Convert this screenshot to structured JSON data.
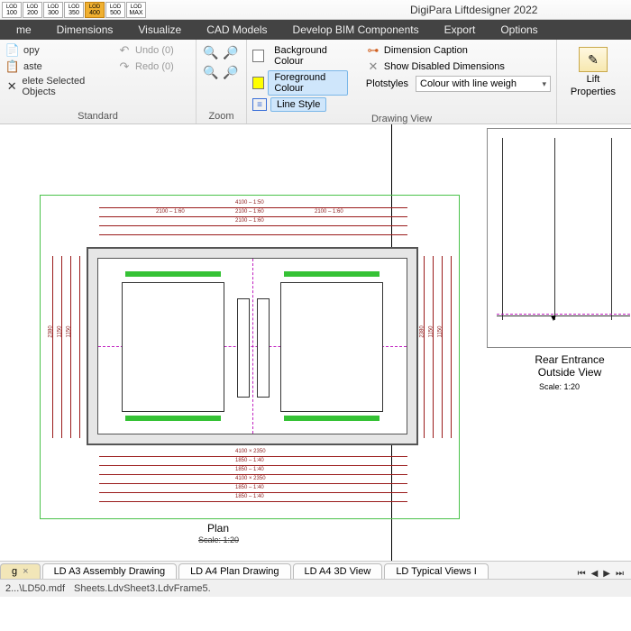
{
  "app": {
    "title": "DigiPara Liftdesigner 2022"
  },
  "lod": {
    "items": [
      "100",
      "200",
      "300",
      "350",
      "400",
      "500",
      "MAX"
    ],
    "selected_index": 4,
    "label_prefix": "LOD"
  },
  "menu": {
    "items": [
      "me",
      "Dimensions",
      "Visualize",
      "CAD Models",
      "Develop BIM Components",
      "Export",
      "Options"
    ]
  },
  "ribbon": {
    "standard": {
      "label": "Standard",
      "copy": "opy",
      "paste": "aste",
      "delete": "elete Selected Objects",
      "undo": "Undo (0)",
      "redo": "Redo (0)"
    },
    "zoom": {
      "label": "Zoom"
    },
    "drawing_view": {
      "label": "Drawing View",
      "bg": "Background Colour",
      "fg": "Foreground Colour",
      "ls": "Line Style",
      "dim_caption": "Dimension Caption",
      "show_disabled": "Show Disabled Dimensions",
      "plotstyles": "Plotstyles",
      "plot_value": "Colour with line weigh",
      "bg_color": "#ffffff",
      "fg_color": "#ffff00",
      "ls_color": "#3a6fd8"
    },
    "lift": {
      "line1": "Lift",
      "line2": "Properties"
    }
  },
  "plan": {
    "title": "Plan",
    "scale": "Scale: 1:20",
    "frame_color": "#4ac24a",
    "wall_color": "#e6e6e6",
    "dim_color": "#9a1a1a",
    "center_color": "#c020c0",
    "rail_color": "#35c235",
    "dims_top": [
      "4100 – 1:50",
      "2100 – 1:60",
      "2100 – 1:60"
    ],
    "dims_bottom": [
      "4100 × 2350",
      "1850 – 1:40",
      "1850 – 1:40"
    ],
    "dims_left": [
      "2380",
      "1150",
      "1150"
    ],
    "dims_right": [
      "2380",
      "1150",
      "1150"
    ]
  },
  "rear": {
    "title": "Rear Entrance\nOutside View",
    "scale": "Scale: 1:20"
  },
  "tabs": {
    "items": [
      {
        "label": "g",
        "active": true,
        "closable": true
      },
      {
        "label": "LD A3 Assembly Drawing",
        "active": false,
        "closable": false
      },
      {
        "label": "LD A4 Plan Drawing",
        "active": false,
        "closable": false
      },
      {
        "label": "LD A4 3D View",
        "active": false,
        "closable": false
      },
      {
        "label": "LD Typical Views I",
        "active": false,
        "closable": false
      }
    ]
  },
  "status": {
    "path": "2...\\LD50.mdf",
    "sheet": "Sheets.LdvSheet3.LdvFrame5."
  }
}
